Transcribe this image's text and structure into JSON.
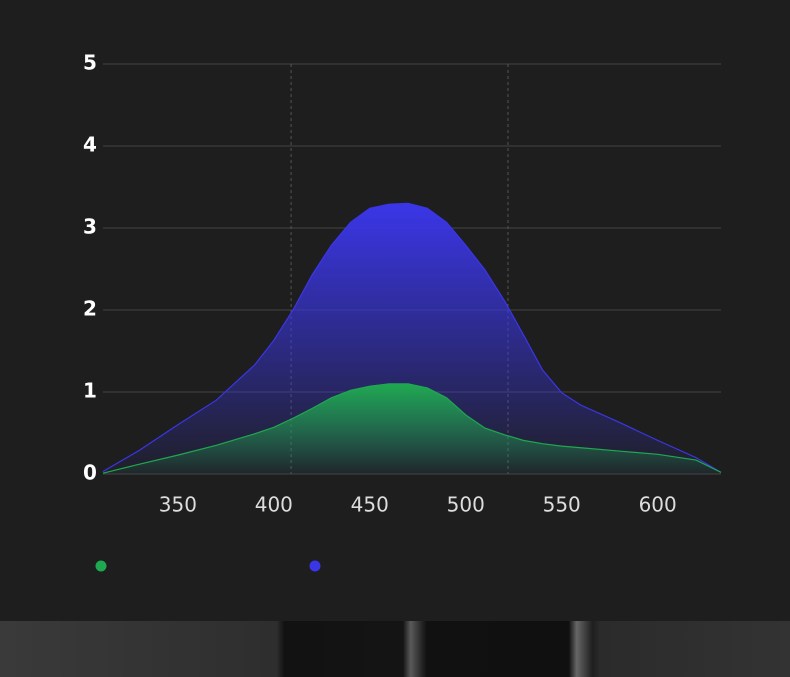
{
  "chart_data": {
    "type": "area",
    "x": [
      311,
      330,
      350,
      370,
      390,
      400,
      410,
      420,
      430,
      440,
      450,
      460,
      470,
      480,
      490,
      500,
      510,
      520,
      530,
      540,
      550,
      560,
      580,
      600,
      620,
      633
    ],
    "series": [
      {
        "color": "#1fa84f",
        "values": [
          0.01,
          0.12,
          0.23,
          0.35,
          0.49,
          0.57,
          0.68,
          0.8,
          0.93,
          1.02,
          1.07,
          1.1,
          1.1,
          1.05,
          0.93,
          0.72,
          0.56,
          0.48,
          0.41,
          0.37,
          0.34,
          0.32,
          0.28,
          0.24,
          0.17,
          0.02
        ]
      },
      {
        "color": "#3a36e8",
        "values": [
          0.03,
          0.29,
          0.6,
          0.9,
          1.33,
          1.63,
          2.0,
          2.43,
          2.79,
          3.07,
          3.24,
          3.29,
          3.3,
          3.24,
          3.07,
          2.79,
          2.49,
          2.12,
          1.7,
          1.27,
          0.99,
          0.84,
          0.63,
          0.41,
          0.2,
          0.02
        ]
      }
    ],
    "xlim": [
      311,
      633
    ],
    "xticks": [
      350,
      400,
      450,
      500,
      550,
      600
    ],
    "ylim": [
      0,
      5
    ],
    "yticks": [
      0,
      1,
      2,
      3,
      4,
      5
    ],
    "vlines": [
      409,
      522
    ],
    "grid": true
  }
}
